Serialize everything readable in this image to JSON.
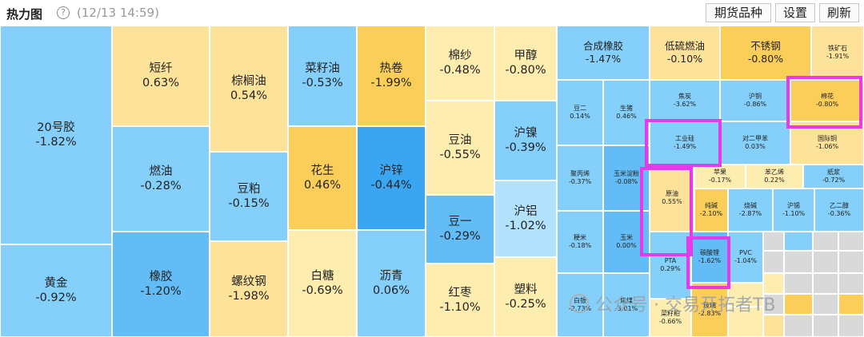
{
  "header": {
    "title": "热力图",
    "timestamp": "(12/13 14:59)",
    "buttons": {
      "futures": "期货品种",
      "settings": "设置",
      "refresh": "刷新"
    }
  },
  "colors": {
    "deep_blue": "#3aa6f2",
    "mid_blue": "#63bcf6",
    "blue": "#84d0fb",
    "light_blue": "#b2e2fc",
    "light_yellow": "#fdeeb0",
    "yellow": "#fde39a",
    "orange": "#fbce5a",
    "neutral": "#d9d9d9",
    "highlight": "#e93ae9"
  },
  "cells": [
    {
      "name": "20号胶",
      "change": "-1.82%",
      "color": "#84d0fb"
    },
    {
      "name": "黄金",
      "change": "-0.92%",
      "color": "#84d0fb"
    },
    {
      "name": "短纤",
      "change": "0.63%",
      "color": "#fde39a"
    },
    {
      "name": "燃油",
      "change": "-0.28%",
      "color": "#84d0fb"
    },
    {
      "name": "橡胶",
      "change": "-1.20%",
      "color": "#63bcf6"
    },
    {
      "name": "棕榈油",
      "change": "0.54%",
      "color": "#fde39a"
    },
    {
      "name": "豆粕",
      "change": "-0.15%",
      "color": "#84d0fb"
    },
    {
      "name": "螺纹钢",
      "change": "-1.98%",
      "color": "#fde39a"
    },
    {
      "name": "菜籽油",
      "change": "-0.53%",
      "color": "#84d0fb"
    },
    {
      "name": "花生",
      "change": "0.46%",
      "color": "#fbce5a"
    },
    {
      "name": "白糖",
      "change": "-0.69%",
      "color": "#fdeeb0"
    },
    {
      "name": "热卷",
      "change": "-1.99%",
      "color": "#fbce5a"
    },
    {
      "name": "沪锌",
      "change": "-0.44%",
      "color": "#3aa6f2"
    },
    {
      "name": "沥青",
      "change": "0.06%",
      "color": "#84d0fb"
    },
    {
      "name": "棉纱",
      "change": "-0.48%",
      "color": "#fdeeb0"
    },
    {
      "name": "豆油",
      "change": "-0.55%",
      "color": "#fdeeb0"
    },
    {
      "name": "豆一",
      "change": "-0.29%",
      "color": "#63bcf6"
    },
    {
      "name": "红枣",
      "change": "-1.10%",
      "color": "#fdeeb0"
    },
    {
      "name": "甲醇",
      "change": "-0.80%",
      "color": "#fdeeb0"
    },
    {
      "name": "沪镍",
      "change": "-0.39%",
      "color": "#84d0fb"
    },
    {
      "name": "沪铝",
      "change": "-1.02%",
      "color": "#b2e2fc"
    },
    {
      "name": "塑料",
      "change": "-0.25%",
      "color": "#fdeeb0"
    },
    {
      "name": "合成橡胶",
      "change": "-1.47%",
      "color": "#84d0fb"
    },
    {
      "name": "低硫燃油",
      "change": "-0.10%",
      "color": "#fde39a"
    },
    {
      "name": "不锈钢",
      "change": "-0.80%",
      "color": "#fbce5a"
    },
    {
      "name": "铁矿石",
      "change": "-1.91%",
      "color": "#fde39a"
    },
    {
      "name": "豆二",
      "change": "0.14%",
      "color": "#84d0fb"
    },
    {
      "name": "生猪",
      "change": "0.46%",
      "color": "#84d0fb"
    },
    {
      "name": "焦炭",
      "change": "-3.62%",
      "color": "#84d0fb"
    },
    {
      "name": "沪铜",
      "change": "-0.86%",
      "color": "#84d0fb"
    },
    {
      "name": "棉花",
      "change": "-0.80%",
      "color": "#fbce5a"
    },
    {
      "name": "工业硅",
      "change": "-1.49%",
      "color": "#84d0fb"
    },
    {
      "name": "对二甲苯",
      "change": "0.03%",
      "color": "#84d0fb"
    },
    {
      "name": "国际铜",
      "change": "-1.06%",
      "color": "#fde39a"
    },
    {
      "name": "聚丙烯",
      "change": "-0.37%",
      "color": "#84d0fb"
    },
    {
      "name": "玉米淀粉",
      "change": "-0.08%",
      "color": "#63bcf6"
    },
    {
      "name": "原油",
      "change": "0.55%",
      "color": "#fde39a"
    },
    {
      "name": "苹果",
      "change": "-0.17%",
      "color": "#fdeeb0"
    },
    {
      "name": "苯乙烯",
      "change": "0.22%",
      "color": "#fdeeb0"
    },
    {
      "name": "纸浆",
      "change": "-0.72%",
      "color": "#84d0fb"
    },
    {
      "name": "纯碱",
      "change": "-2.10%",
      "color": "#fbce5a"
    },
    {
      "name": "烧碱",
      "change": "-2.87%",
      "color": "#84d0fb"
    },
    {
      "name": "沪锡",
      "change": "-1.10%",
      "color": "#84d0fb"
    },
    {
      "name": "乙二醇",
      "change": "-0.36%",
      "color": "#84d0fb"
    },
    {
      "name": "粳米",
      "change": "-0.18%",
      "color": "#84d0fb"
    },
    {
      "name": "玉米",
      "change": "0.00%",
      "color": "#63bcf6"
    },
    {
      "name": "PTA",
      "change": "0.29%",
      "color": "#84d0fb"
    },
    {
      "name": "碳酸锂",
      "change": "-1.62%",
      "color": "#63bcf6"
    },
    {
      "name": "PVC",
      "change": "-1.04%",
      "color": "#84d0fb"
    },
    {
      "name": "白银",
      "change": "-2.73%",
      "color": "#84d0fb"
    },
    {
      "name": "焦煤",
      "change": "-3.01%",
      "color": "#84d0fb"
    },
    {
      "name": "菜籽粕",
      "change": "-0.66%",
      "color": "#fdeeb0"
    },
    {
      "name": "玻璃",
      "change": "-2.83%",
      "color": "#fbce5a"
    }
  ],
  "minor_cells": [
    {
      "color": "#fdeeb0"
    },
    {
      "color": "#fdeeb0"
    },
    {
      "color": "#d9d9d9"
    },
    {
      "color": "#84d0fb"
    },
    {
      "color": "#d9d9d9"
    },
    {
      "color": "#d9d9d9"
    },
    {
      "color": "#d9d9d9"
    },
    {
      "color": "#d9d9d9"
    },
    {
      "color": "#d9d9d9"
    },
    {
      "color": "#d9d9d9"
    },
    {
      "color": "#fdeeb0"
    },
    {
      "color": "#d9d9d9"
    },
    {
      "color": "#d9d9d9"
    },
    {
      "color": "#d9d9d9"
    },
    {
      "color": "#d9d9d9"
    },
    {
      "color": "#fbce5a"
    },
    {
      "color": "#d9d9d9"
    },
    {
      "color": "#fbce5a"
    },
    {
      "color": "#fde39a"
    },
    {
      "color": "#d9d9d9"
    },
    {
      "color": "#d9d9d9"
    },
    {
      "color": "#d9d9d9"
    }
  ],
  "watermark": {
    "text": "公众号 · 交易开拓者TB"
  }
}
